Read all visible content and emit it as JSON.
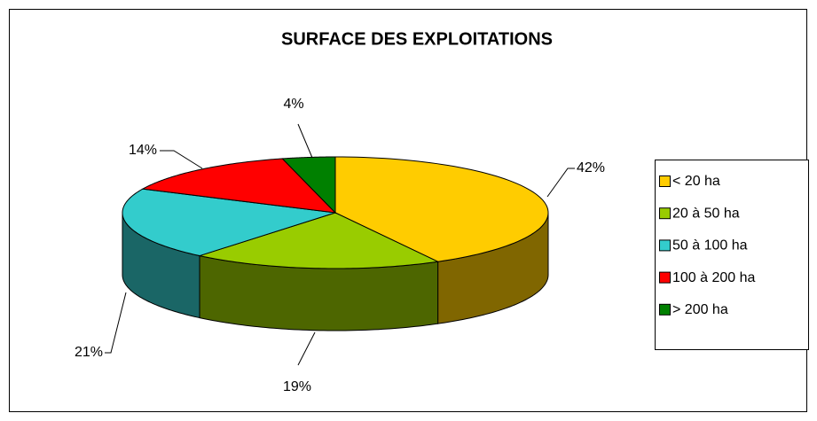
{
  "chart_data": {
    "type": "pie",
    "title": "SURFACE DES EXPLOITATIONS",
    "categories": [
      "< 20 ha",
      "20 à 50 ha",
      "50 à 100 ha",
      "100 à 200 ha",
      "> 200 ha"
    ],
    "values": [
      42,
      19,
      21,
      14,
      4
    ],
    "value_labels": [
      "42%",
      "19%",
      "21%",
      "14%",
      "4%"
    ],
    "colors": [
      "#ffcc00",
      "#99cc00",
      "#33cccc",
      "#ff0000",
      "#008000"
    ],
    "legend": "right"
  }
}
